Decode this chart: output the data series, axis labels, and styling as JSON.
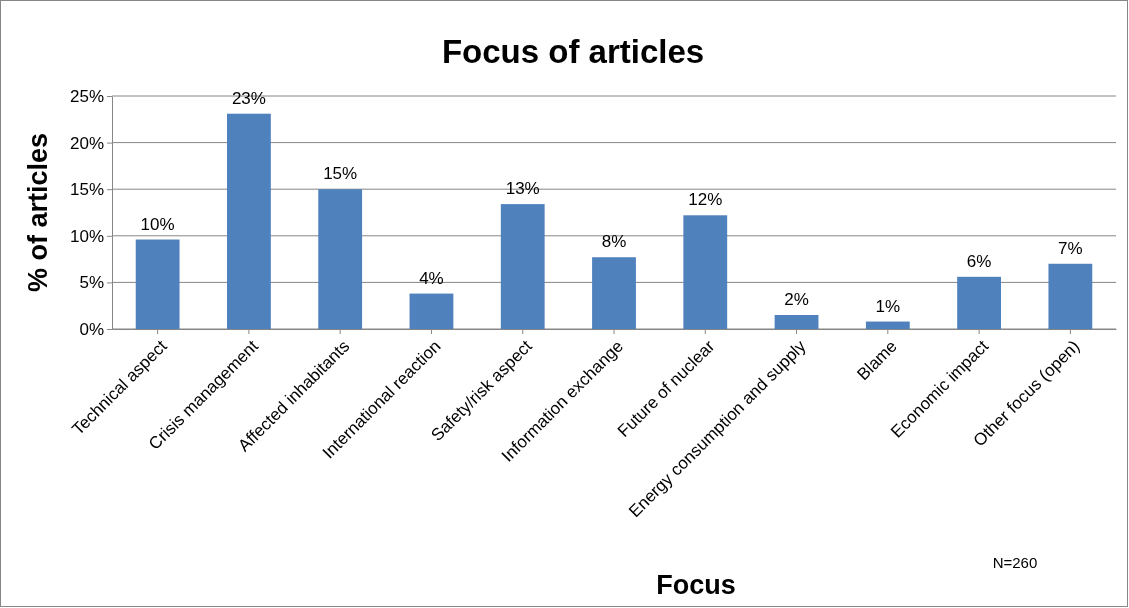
{
  "chart_data": {
    "type": "bar",
    "title": "Focus of articles",
    "xlabel": "Focus",
    "ylabel": "% of articles",
    "categories": [
      "Technical aspect",
      "Crisis management",
      "Affected inhabitants",
      "International reaction",
      "Safety/risk aspect",
      "Information exchange",
      "Future of nuclear",
      "Energy consumption and supply",
      "Blame",
      "Economic impact",
      "Other focus (open)"
    ],
    "values": [
      9.6,
      23.1,
      15.0,
      3.8,
      13.4,
      7.7,
      12.2,
      1.5,
      0.8,
      5.6,
      7.0
    ],
    "value_labels": [
      "10%",
      "23%",
      "15%",
      "4%",
      "13%",
      "8%",
      "12%",
      "2%",
      "1%",
      "6%",
      "7%"
    ],
    "color": "#4f81bd",
    "ylim": [
      0,
      25
    ],
    "yticks": [
      {
        "value": 0,
        "label": "0%"
      },
      {
        "value": 5,
        "label": "5%"
      },
      {
        "value": 10,
        "label": "10%"
      },
      {
        "value": 15,
        "label": "15%"
      },
      {
        "value": 20,
        "label": "20%"
      },
      {
        "value": 25,
        "label": "25%"
      }
    ],
    "grid": "y",
    "annotations": [
      "N=260"
    ]
  }
}
